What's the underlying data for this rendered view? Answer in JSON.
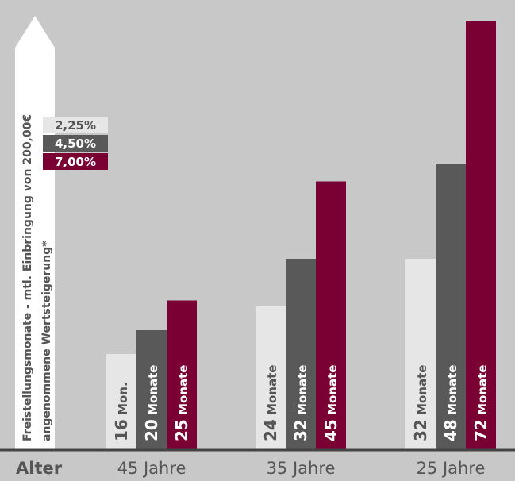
{
  "chart_data": {
    "type": "bar",
    "ylabel": "Freistellungsmonate - mtl. Einbringung von 200,00€",
    "ylabel2": "angenommene Wertsteigerung*",
    "xlabel": "Alter",
    "categories": [
      "45 Jahre",
      "35 Jahre",
      "25 Jahre"
    ],
    "series": [
      {
        "name": "2,25%",
        "color": "#e6e6e6",
        "label_color": "#555555",
        "values": [
          16,
          24,
          32
        ],
        "labels": [
          "16 Mon.",
          "24 Monate",
          "32 Monate"
        ]
      },
      {
        "name": "4,50%",
        "color": "#595959",
        "label_color": "#ffffff",
        "values": [
          20,
          32,
          48
        ],
        "labels": [
          "20 Monate",
          "32 Monate",
          "48 Monate"
        ]
      },
      {
        "name": "7,00%",
        "color": "#7a0033",
        "label_color": "#ffffff",
        "values": [
          25,
          45,
          72
        ],
        "labels": [
          "25 Monate",
          "45 Monate",
          "72 Monate"
        ]
      }
    ],
    "legend": {
      "placement": "top-left"
    }
  },
  "colors": {
    "background": "#c8c8c8",
    "axis_label": "#555555",
    "baseline": "#444444",
    "axis_arrow": "#ffffff"
  }
}
